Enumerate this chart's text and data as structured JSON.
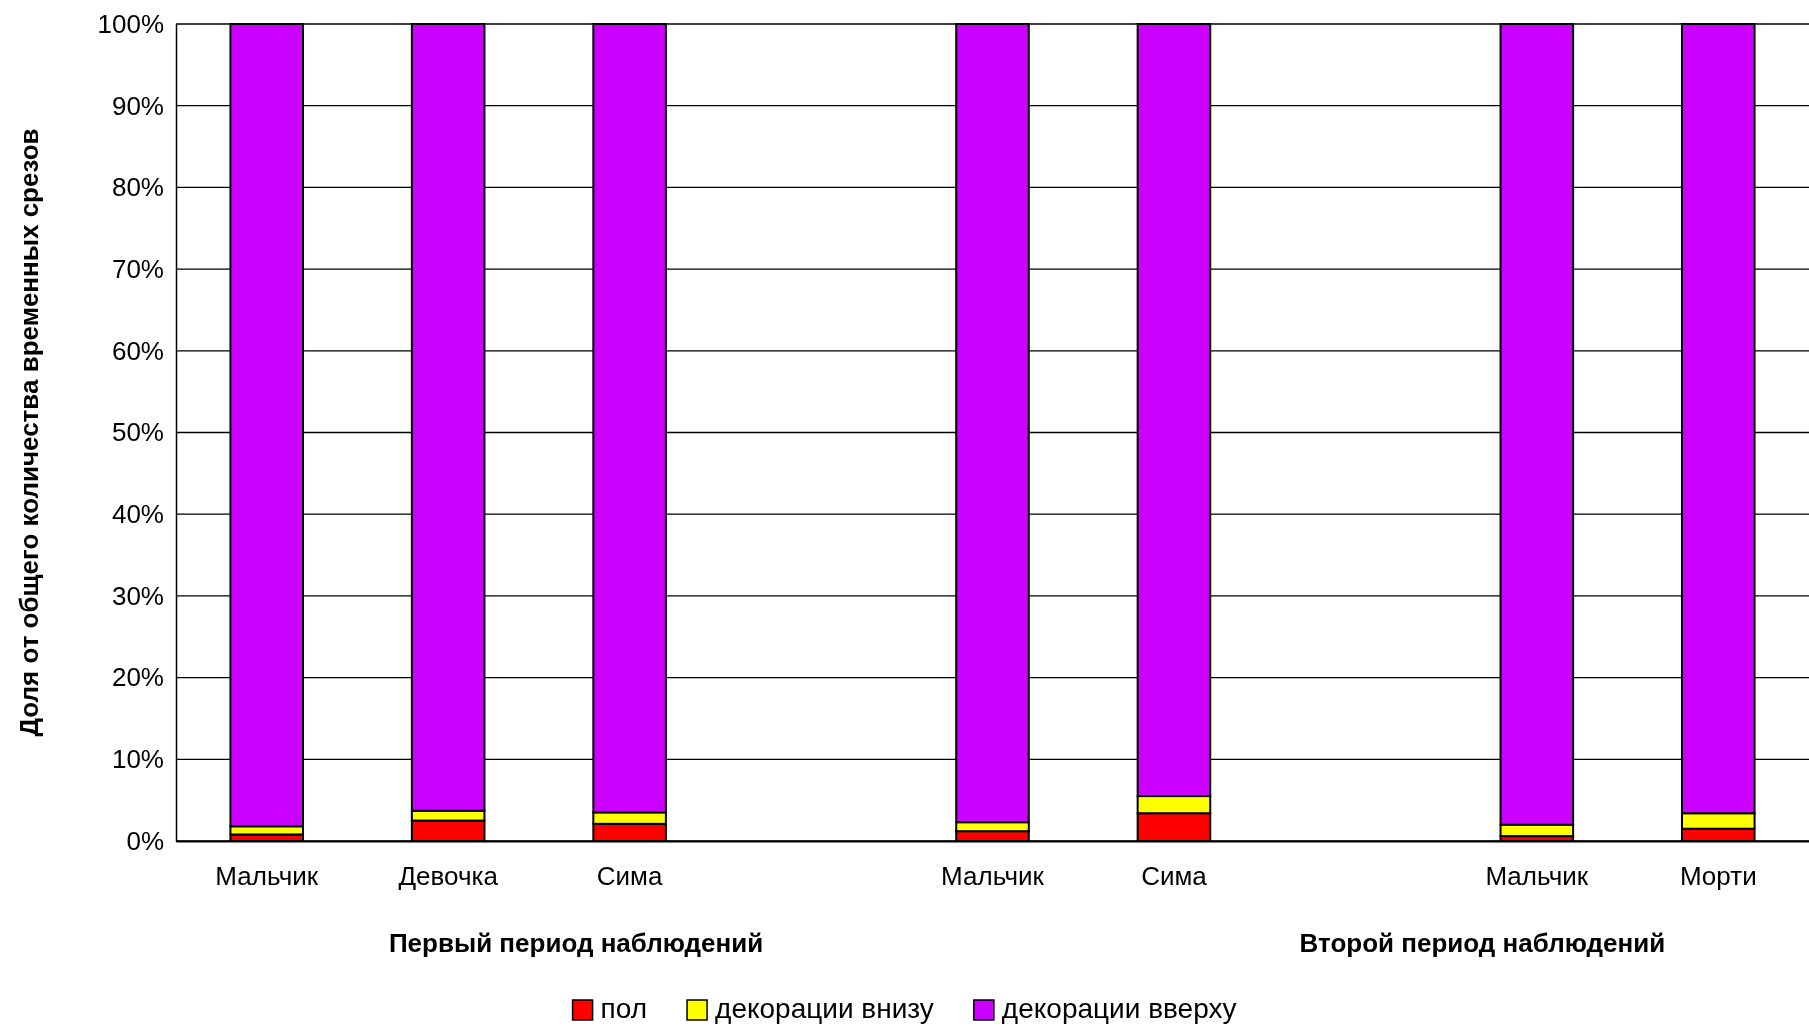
{
  "chart_data": {
    "type": "bar",
    "stacked": true,
    "ylabel": "Доля от общего количества временных срезов",
    "categories": [
      "Мальчик",
      "Девочка",
      "Сима",
      null,
      "Мальчик",
      "Сима",
      null,
      "Мальчик",
      "Морти"
    ],
    "series": [
      {
        "name": "пол",
        "color": "#ff0000",
        "values": [
          0.8,
          2.5,
          2.1,
          null,
          1.2,
          3.4,
          null,
          0.6,
          1.5
        ]
      },
      {
        "name": "декорации внизу",
        "color": "#ffff00",
        "values": [
          1.0,
          1.2,
          1.4,
          null,
          1.1,
          2.1,
          null,
          1.4,
          1.9
        ]
      },
      {
        "name": "декорации вверху",
        "color": "#cc00ff",
        "values": [
          98.2,
          96.3,
          96.5,
          null,
          97.7,
          94.5,
          null,
          98.0,
          96.6
        ]
      }
    ],
    "ylim": [
      0,
      100
    ],
    "yticks": [
      {
        "value": 0,
        "label": "0%"
      },
      {
        "value": 10,
        "label": "10%"
      },
      {
        "value": 20,
        "label": "20%"
      },
      {
        "value": 30,
        "label": "30%"
      },
      {
        "value": 40,
        "label": "40%"
      },
      {
        "value": 50,
        "label": "50%"
      },
      {
        "value": 60,
        "label": "60%"
      },
      {
        "value": 70,
        "label": "70%"
      },
      {
        "value": 80,
        "label": "80%"
      },
      {
        "value": 90,
        "label": "90%"
      },
      {
        "value": 100,
        "label": "100%"
      }
    ],
    "grid": "y",
    "legend": "bottom",
    "annotations": [
      "Первый период наблюдений",
      "Второй период наблюдений"
    ]
  }
}
